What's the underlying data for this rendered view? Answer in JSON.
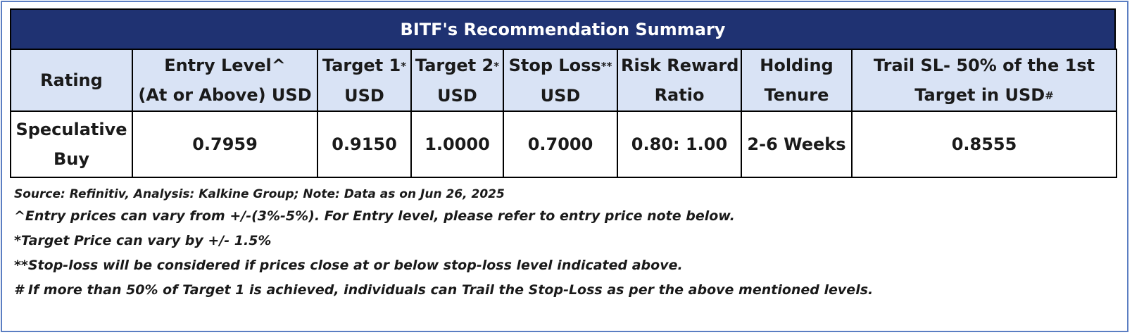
{
  "title": "BITF's Recommendation Summary",
  "headers": {
    "rating": "Rating",
    "entry_line1": "Entry Level^",
    "entry_line2": "(At or Above) USD",
    "target1_label": "Target 1",
    "target1_mark": "*",
    "target1_unit": "USD",
    "target2_label": "Target 2",
    "target2_mark": "*",
    "target2_unit": "USD",
    "stop_loss_label": "Stop Loss",
    "stop_loss_mark": "**",
    "stop_loss_unit": "USD",
    "risk_line1": "Risk Reward",
    "risk_line2": "Ratio",
    "holding_line1": "Holding",
    "holding_line2": "Tenure",
    "trail_line1": "Trail SL- 50% of the 1st",
    "trail_line2": "Target in USD",
    "trail_mark": "#"
  },
  "row": {
    "rating_line1": "Speculative",
    "rating_line2": "Buy",
    "entry_level": "0.7959",
    "target1": "0.9150",
    "target2": "1.0000",
    "stop_loss": "0.7000",
    "risk_reward": "0.80: 1.00",
    "holding_tenure": "2-6 Weeks",
    "trail_sl": "0.8555"
  },
  "notes": {
    "source": "Source: Refinitiv, Analysis: Kalkine Group; Note: Data as on Jun 26, 2025",
    "entry_note": "^Entry prices can vary from +/-(3%-5%). For Entry level, please refer to entry price note below.",
    "target_note": "*Target Price can vary by +/- 1.5%",
    "stop_loss_note": "**Stop-loss will be considered if prices close at or below stop-loss level indicated above.",
    "trail_note": "# If more than 50% of Target 1 is achieved, individuals can Trail the Stop-Loss as per the above mentioned levels."
  },
  "colors": {
    "title_background": "#1f3272",
    "header_background": "#d9e3f5",
    "frame_border": "#5b7ec2"
  }
}
